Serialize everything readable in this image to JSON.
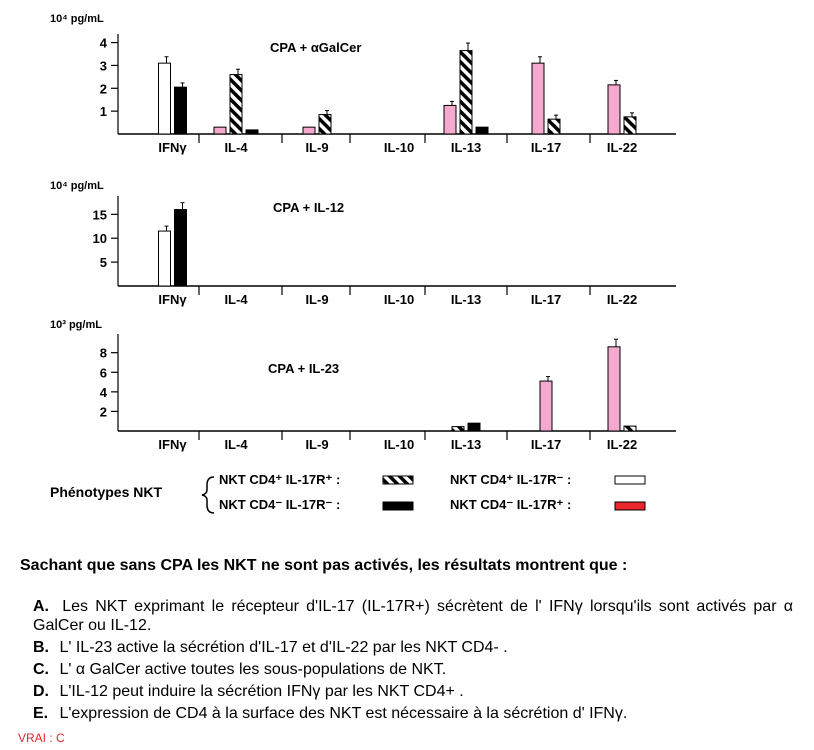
{
  "chart_data": [
    {
      "type": "bar",
      "title": "CPA + αGalCer",
      "ylabel": "10⁴ pg/mL",
      "yticks": [
        1,
        2,
        3,
        4
      ],
      "ylim": [
        0,
        4.2
      ],
      "categories": [
        "IFNγ",
        "IL-4",
        "IL-9",
        "IL-10",
        "IL-13",
        "IL-17",
        "IL-22"
      ],
      "series": [
        {
          "name": "NKT CD4⁺ IL-17R⁺",
          "values": [
            0,
            2.6,
            0.85,
            0,
            3.65,
            0.65,
            0.75
          ]
        },
        {
          "name": "NKT CD4⁺ IL-17R⁻",
          "values": [
            3.1,
            0,
            0,
            0,
            0,
            0,
            0
          ]
        },
        {
          "name": "NKT CD4⁻ IL-17R⁻",
          "values": [
            2.05,
            0.18,
            0,
            0,
            0.3,
            0,
            0
          ]
        },
        {
          "name": "NKT CD4⁻ IL-17R⁺",
          "values": [
            0,
            0.3,
            0.3,
            0,
            1.25,
            3.1,
            2.15
          ]
        }
      ]
    },
    {
      "type": "bar",
      "title": "CPA + IL-12",
      "ylabel": "10⁴ pg/mL",
      "yticks": [
        5,
        10,
        15
      ],
      "ylim": [
        0,
        18
      ],
      "categories": [
        "IFNγ",
        "IL-4",
        "IL-9",
        "IL-10",
        "IL-13",
        "IL-17",
        "IL-22"
      ],
      "series": [
        {
          "name": "NKT CD4⁺ IL-17R⁺",
          "values": [
            0,
            0,
            0,
            0,
            0,
            0,
            0
          ]
        },
        {
          "name": "NKT CD4⁺ IL-17R⁻",
          "values": [
            11.5,
            0,
            0,
            0,
            0,
            0,
            0
          ]
        },
        {
          "name": "NKT CD4⁻ IL-17R⁻",
          "values": [
            16,
            0,
            0,
            0,
            0,
            0,
            0
          ]
        },
        {
          "name": "NKT CD4⁻ IL-17R⁺",
          "values": [
            0,
            0,
            0,
            0,
            0,
            0,
            0
          ]
        }
      ]
    },
    {
      "type": "bar",
      "title": "CPA + IL-23",
      "ylabel": "10³ pg/mL",
      "yticks": [
        2,
        4,
        6,
        8
      ],
      "ylim": [
        0,
        9.5
      ],
      "categories": [
        "IFNγ",
        "IL-4",
        "IL-9",
        "IL-10",
        "IL-13",
        "IL-17",
        "IL-22"
      ],
      "series": [
        {
          "name": "NKT CD4⁺ IL-17R⁺",
          "values": [
            0,
            0,
            0,
            0,
            0.45,
            0,
            0.5
          ]
        },
        {
          "name": "NKT CD4⁺ IL-17R⁻",
          "values": [
            0,
            0,
            0,
            0,
            0,
            0,
            0
          ]
        },
        {
          "name": "NKT CD4⁻ IL-17R⁻",
          "values": [
            0,
            0,
            0,
            0,
            0.8,
            0,
            0
          ]
        },
        {
          "name": "NKT CD4⁻ IL-17R⁺",
          "values": [
            0,
            0,
            0,
            0,
            0,
            5.1,
            8.6
          ]
        }
      ]
    }
  ],
  "legend": {
    "title": "Phénotypes NKT",
    "entries": [
      {
        "label": "NKT CD4⁺ IL-17R⁺ :",
        "pattern": "hatched"
      },
      {
        "label": "NKT CD4⁺ IL-17R⁻ :",
        "pattern": "white"
      },
      {
        "label": "NKT CD4⁻ IL-17R⁻ :",
        "pattern": "black"
      },
      {
        "label": "NKT CD4⁻ IL-17R⁺ :",
        "pattern": "red"
      }
    ]
  },
  "colors": {
    "pink": "#f6a9cf",
    "black": "#000000",
    "white": "#ffffff",
    "red": "#e8262b",
    "answer": "#e0262a"
  },
  "question": "Sachant que sans CPA les NKT ne sont pas activés, les résultats montrent que :",
  "options": [
    {
      "letter": "A.",
      "text": "Les NKT exprimant le récepteur d'IL-17 (IL-17R+) sécrètent de l' IFNγ lorsqu'ils sont activés par α GalCer ou IL-12."
    },
    {
      "letter": "B.",
      "text": "L' IL-23 active la sécrétion d'IL-17 et d'IL-22 par les NKT CD4- ."
    },
    {
      "letter": "C.",
      "text": "L' α GalCer active toutes les sous-populations de NKT."
    },
    {
      "letter": "D.",
      "text": "L'IL-12 peut induire la sécrétion IFNγ par les NKT CD4+ ."
    },
    {
      "letter": "E.",
      "text": "L'expression de CD4 à la surface des NKT est nécessaire à la sécrétion d' IFNγ."
    }
  ],
  "answer": "VRAI : C"
}
